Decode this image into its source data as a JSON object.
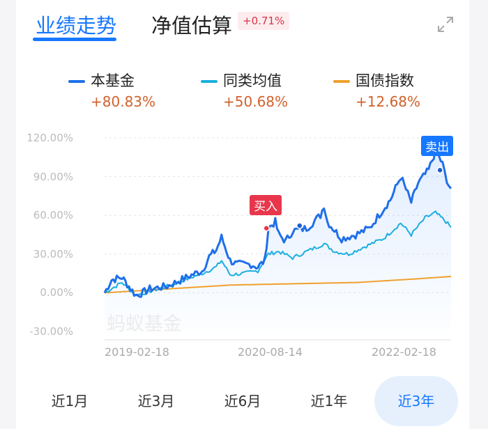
{
  "tabs": {
    "performance": "业绩走势",
    "estimate": "净值估算",
    "estimate_change": "+0.71%"
  },
  "legend": [
    {
      "name": "本基金",
      "value": "+80.83%",
      "color": "#1f6fe8"
    },
    {
      "name": "同类均值",
      "value": "+50.68%",
      "color": "#1aaee0"
    },
    {
      "name": "国债指数",
      "value": "+12.68%",
      "color": "#f0a02c"
    }
  ],
  "watermark": "蚂蚁基金",
  "markers": {
    "buy": "买入",
    "sell": "卖出"
  },
  "chart_data": {
    "type": "line",
    "yticks": [
      "120.00%",
      "90.00%",
      "60.00%",
      "30.00%",
      "0.00%",
      "-30.00%"
    ],
    "ylim": [
      -30,
      120
    ],
    "xticks": [
      "2019-02-18",
      "2020-08-14",
      "2022-02-18"
    ],
    "xlim_days": [
      0,
      1096
    ],
    "series": [
      {
        "name": "本基金",
        "points": [
          [
            0,
            0
          ],
          [
            22,
            10
          ],
          [
            55,
            12
          ],
          [
            77,
            5
          ],
          [
            99,
            -2
          ],
          [
            121,
            0
          ],
          [
            143,
            3
          ],
          [
            198,
            5
          ],
          [
            287,
            15
          ],
          [
            309,
            17
          ],
          [
            331,
            28
          ],
          [
            353,
            33
          ],
          [
            370,
            43
          ],
          [
            397,
            25
          ],
          [
            419,
            22
          ],
          [
            463,
            22
          ],
          [
            485,
            20
          ],
          [
            507,
            25
          ],
          [
            518,
            50
          ],
          [
            540,
            55
          ],
          [
            551,
            45
          ],
          [
            573,
            40
          ],
          [
            595,
            48
          ],
          [
            639,
            50
          ],
          [
            683,
            60
          ],
          [
            694,
            68
          ],
          [
            705,
            55
          ],
          [
            750,
            42
          ],
          [
            794,
            45
          ],
          [
            838,
            50
          ],
          [
            882,
            65
          ],
          [
            904,
            72
          ],
          [
            937,
            90
          ],
          [
            970,
            70
          ],
          [
            992,
            85
          ],
          [
            1025,
            95
          ],
          [
            1047,
            110
          ],
          [
            1069,
            100
          ],
          [
            1083,
            85
          ],
          [
            1096,
            80.83
          ]
        ]
      },
      {
        "name": "同类均值",
        "points": [
          [
            0,
            0
          ],
          [
            55,
            8
          ],
          [
            99,
            -2
          ],
          [
            198,
            5
          ],
          [
            309,
            15
          ],
          [
            353,
            20
          ],
          [
            370,
            25
          ],
          [
            397,
            14
          ],
          [
            441,
            15
          ],
          [
            485,
            17
          ],
          [
            518,
            30
          ],
          [
            551,
            32
          ],
          [
            595,
            27
          ],
          [
            639,
            32
          ],
          [
            694,
            38
          ],
          [
            728,
            32
          ],
          [
            772,
            30
          ],
          [
            816,
            35
          ],
          [
            882,
            42
          ],
          [
            937,
            54
          ],
          [
            970,
            45
          ],
          [
            1014,
            58
          ],
          [
            1047,
            62
          ],
          [
            1080,
            55
          ],
          [
            1096,
            50.68
          ]
        ]
      },
      {
        "name": "国债指数",
        "points": [
          [
            0,
            0
          ],
          [
            200,
            3
          ],
          [
            400,
            6
          ],
          [
            600,
            7
          ],
          [
            800,
            8
          ],
          [
            1000,
            11
          ],
          [
            1096,
            12.68
          ]
        ]
      }
    ],
    "buy_point": [
      512,
      50
    ],
    "sell_point": [
      1061,
      95
    ],
    "extra_point": [
      617,
      52
    ]
  },
  "ranges": [
    "近1月",
    "近3月",
    "近6月",
    "近1年",
    "近3年"
  ],
  "selected_range": "近3年"
}
